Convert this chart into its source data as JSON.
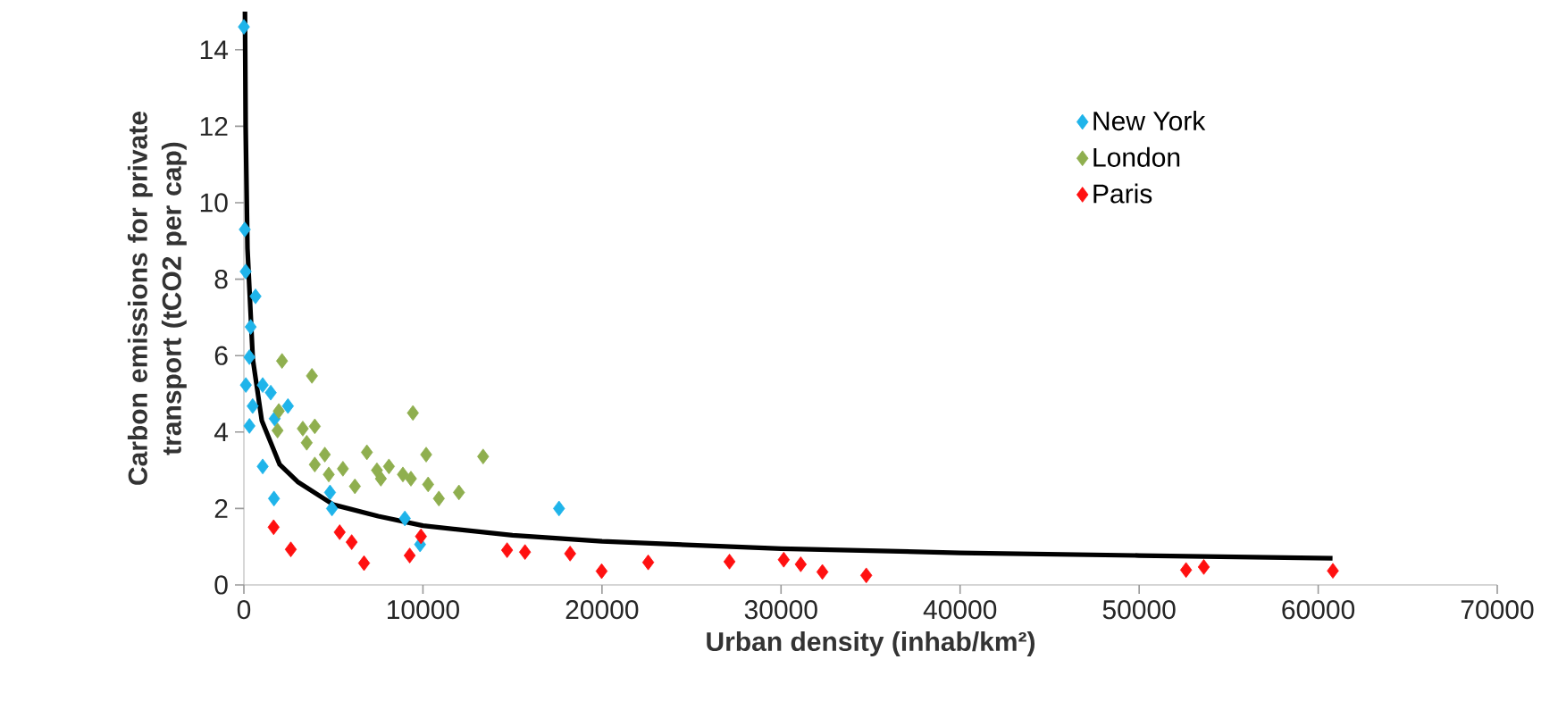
{
  "chart_data": {
    "type": "scatter",
    "xlabel": "Urban density (inhab/km²)",
    "ylabel": "Carbon emissions for private transport (tCO2 per cap)",
    "xlim": [
      0,
      70000
    ],
    "ylim": [
      0,
      15
    ],
    "xticks": [
      0,
      10000,
      20000,
      30000,
      40000,
      50000,
      60000,
      70000
    ],
    "yticks": [
      0,
      2,
      4,
      6,
      8,
      10,
      12,
      14
    ],
    "legend": "top right",
    "marker": "diamond",
    "series": [
      {
        "name": "New York",
        "color": "#1fb4ea",
        "x": [
          0,
          50,
          100,
          650,
          380,
          310,
          110,
          1050,
          1500,
          490,
          2460,
          1720,
          310,
          1050,
          1680,
          4810,
          4920,
          8990,
          9840,
          17600
        ],
        "values": [
          14.6,
          9.3,
          8.2,
          7.55,
          6.75,
          5.96,
          5.23,
          5.23,
          5.03,
          4.68,
          4.68,
          4.35,
          4.16,
          3.1,
          2.26,
          2.42,
          2.0,
          1.74,
          1.06,
          2.0
        ]
      },
      {
        "name": "London",
        "color": "#8faf4f",
        "x": [
          2130,
          3800,
          9440,
          1950,
          1880,
          3290,
          3960,
          3510,
          4520,
          3960,
          4740,
          5530,
          6200,
          6870,
          7430,
          7650,
          8880,
          9330,
          10180,
          10290,
          10890,
          12010,
          13360,
          8100
        ],
        "values": [
          5.86,
          5.47,
          4.5,
          4.55,
          4.04,
          4.09,
          4.15,
          3.72,
          3.41,
          3.15,
          2.89,
          3.04,
          2.58,
          3.47,
          3.0,
          2.78,
          2.89,
          2.78,
          3.41,
          2.63,
          2.26,
          2.42,
          3.36,
          3.1
        ]
      },
      {
        "name": "Paris",
        "color": "#ff1010",
        "x": [
          1660,
          2620,
          5350,
          6020,
          6710,
          9260,
          9890,
          14700,
          15700,
          18220,
          19980,
          22580,
          27120,
          30150,
          31100,
          32310,
          34760,
          52620,
          53610,
          60820
        ],
        "values": [
          1.51,
          0.93,
          1.38,
          1.12,
          0.57,
          0.77,
          1.27,
          0.91,
          0.86,
          0.82,
          0.36,
          0.59,
          0.61,
          0.66,
          0.54,
          0.34,
          0.25,
          0.39,
          0.47,
          0.37
        ]
      },
      {
        "type": "line",
        "color": "#000000",
        "marker": "none",
        "x": [
          60,
          100,
          200,
          500,
          1000,
          2000,
          3000,
          5000,
          7500,
          10000,
          15000,
          20000,
          30000,
          40000,
          50000,
          60800
        ],
        "values": [
          15.0,
          12.0,
          8.8,
          5.9,
          4.3,
          3.15,
          2.7,
          2.1,
          1.8,
          1.55,
          1.3,
          1.14,
          0.95,
          0.84,
          0.77,
          0.7
        ]
      }
    ]
  }
}
